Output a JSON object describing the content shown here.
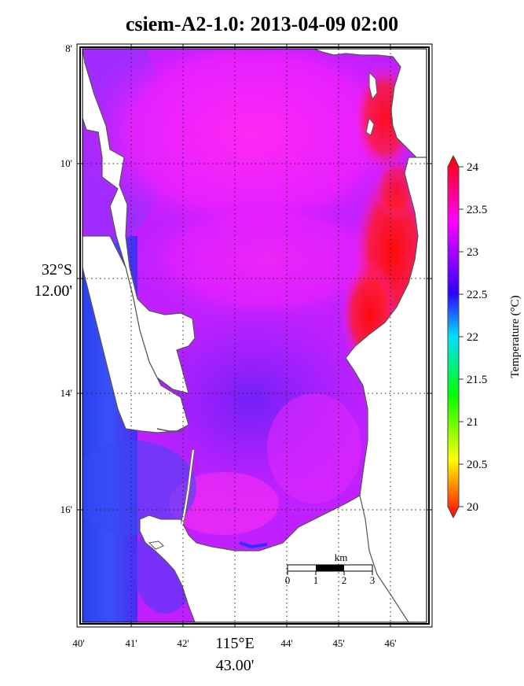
{
  "title": "csiem-A2-1.0: 2013-04-09 02:00",
  "lon_ticks": [
    "40'",
    "41'",
    "42'",
    "44'",
    "45'",
    "46'"
  ],
  "lon_major": {
    "line1": "115°E",
    "line2": "43.00'"
  },
  "lat_ticks": [
    "8'",
    "10'",
    "14'",
    "16'"
  ],
  "lat_major": {
    "line1": "32°S",
    "line2": "12.00'"
  },
  "colorbar": {
    "label": "Temperature (°C)",
    "min": 20,
    "max": 24,
    "ticks": [
      "24",
      "23.5",
      "23",
      "22.5",
      "22",
      "21.5",
      "21",
      "20.5",
      "20"
    ],
    "colors": [
      "#ff0000",
      "#ff00ff",
      "#3000ff",
      "#00e0ff",
      "#00ff00",
      "#ffff00",
      "#ff0000"
    ]
  },
  "scalebar": {
    "unit": "km",
    "ticks": [
      "0",
      "1",
      "2",
      "3"
    ]
  },
  "colors": {
    "water_main": "#ba1cff",
    "water_magenta": "#ff22f2",
    "water_red": "#ff1212",
    "water_blue": "#3a2cf0",
    "land": "#ffffff"
  }
}
